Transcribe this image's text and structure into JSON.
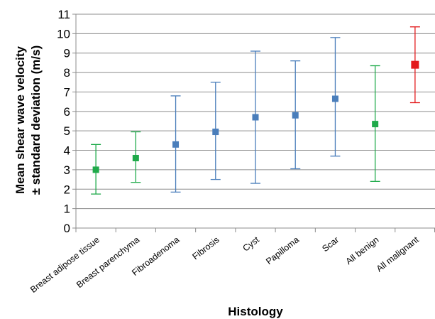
{
  "chart_data": {
    "type": "scatter",
    "subtype": "error-bar",
    "title": "",
    "xlabel": "Histology",
    "ylabel_line1": "Mean shear wave velocity",
    "ylabel_line2": "± standard deviation (m/s)",
    "ylim": [
      0,
      11
    ],
    "yticks": [
      "0",
      "1",
      "2",
      "3",
      "4",
      "5",
      "6",
      "7",
      "8",
      "9",
      "10",
      "11"
    ],
    "grid": "horizontal",
    "legend": "none",
    "categories": [
      "Breast adipose tissue",
      "Breast parenchyma",
      "Fibroadenoma",
      "Fibrosis",
      "Cyst",
      "Papilloma",
      "Scar",
      "All benign",
      "All malignant"
    ],
    "means": [
      3.0,
      3.6,
      4.3,
      4.95,
      5.7,
      5.8,
      6.65,
      5.35,
      8.4
    ],
    "lower": [
      1.75,
      2.35,
      1.85,
      2.5,
      2.3,
      3.05,
      3.7,
      2.4,
      6.45
    ],
    "upper": [
      4.3,
      4.95,
      6.8,
      7.5,
      9.1,
      8.6,
      9.8,
      8.35,
      10.35
    ],
    "point_colors": [
      "#1faa4a",
      "#1faa4a",
      "#4a7ebb",
      "#4a7ebb",
      "#4a7ebb",
      "#4a7ebb",
      "#4a7ebb",
      "#1faa4a",
      "#e31a1c"
    ]
  }
}
